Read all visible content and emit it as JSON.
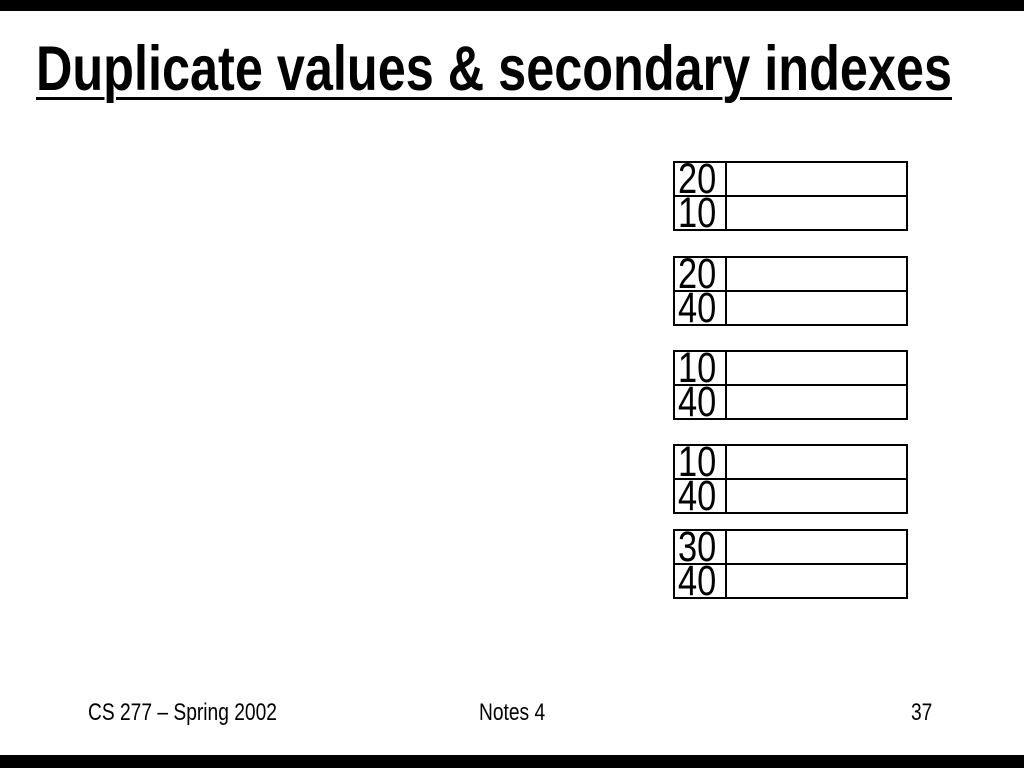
{
  "colors": {
    "background": "#ffffff",
    "bar": "#000000",
    "text": "#000000",
    "table_border": "#000000"
  },
  "slide": {
    "title": "Duplicate values & secondary indexes",
    "index_tables": [
      {
        "rows": [
          {
            "key": "20",
            "pointer": ""
          },
          {
            "key": "10",
            "pointer": ""
          }
        ]
      },
      {
        "rows": [
          {
            "key": "20",
            "pointer": ""
          },
          {
            "key": "40",
            "pointer": ""
          }
        ]
      },
      {
        "rows": [
          {
            "key": "10",
            "pointer": ""
          },
          {
            "key": "40",
            "pointer": ""
          }
        ]
      },
      {
        "rows": [
          {
            "key": "10",
            "pointer": ""
          },
          {
            "key": "40",
            "pointer": ""
          }
        ]
      },
      {
        "rows": [
          {
            "key": "30",
            "pointer": ""
          },
          {
            "key": "40",
            "pointer": ""
          }
        ]
      }
    ],
    "footer": {
      "course": "CS 277 – Spring 2002",
      "notes": "Notes 4",
      "page": "37"
    }
  }
}
